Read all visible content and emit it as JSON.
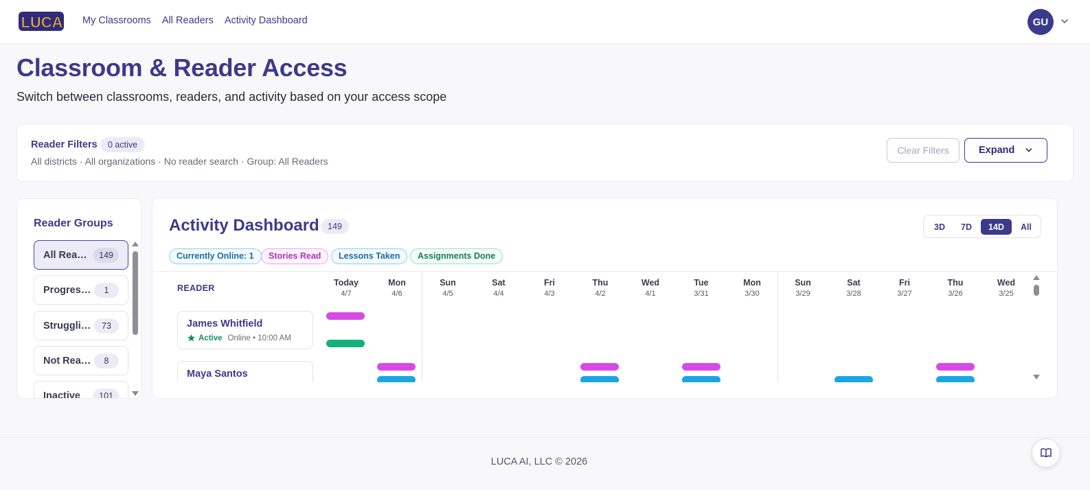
{
  "header": {
    "logo_text": "LUCA",
    "nav": [
      "My Classrooms",
      "All Readers",
      "Activity Dashboard"
    ],
    "user_initials": "GU"
  },
  "page": {
    "title": "Classroom & Reader Access",
    "subtitle": "Switch between classrooms, readers, and activity based on your access scope"
  },
  "filters": {
    "title": "Reader Filters",
    "badge": "0 active",
    "summary": "All districts · All organizations · No reader search · Group: All Readers",
    "clear_label": "Clear Filters",
    "expand_label": "Expand"
  },
  "groups": {
    "title": "Reader Groups",
    "items": [
      {
        "label": "All Readers",
        "count": "149"
      },
      {
        "label": "Progressing",
        "count": "1"
      },
      {
        "label": "Struggling",
        "count": "73"
      },
      {
        "label": "Not Reading",
        "count": "8"
      },
      {
        "label": "Inactive",
        "count": "101"
      }
    ]
  },
  "activity": {
    "title": "Activity Dashboard",
    "count": "149",
    "ranges": [
      "3D",
      "7D",
      "14D",
      "All"
    ],
    "selected_range": "14D",
    "legend": {
      "online": "Currently Online: 1",
      "stories": "Stories Read",
      "lessons": "Lessons Taken",
      "assignments": "Assignments Done"
    },
    "reader_header": "READER",
    "days": [
      {
        "name": "Today",
        "date": "4/7"
      },
      {
        "name": "Mon",
        "date": "4/6"
      },
      {
        "name": "Sun",
        "date": "4/5"
      },
      {
        "name": "Sat",
        "date": "4/4"
      },
      {
        "name": "Fri",
        "date": "4/3"
      },
      {
        "name": "Thu",
        "date": "4/2"
      },
      {
        "name": "Wed",
        "date": "4/1"
      },
      {
        "name": "Tue",
        "date": "3/31"
      },
      {
        "name": "Mon",
        "date": "3/30"
      },
      {
        "name": "Sun",
        "date": "3/29"
      },
      {
        "name": "Sat",
        "date": "3/28"
      },
      {
        "name": "Fri",
        "date": "3/27"
      },
      {
        "name": "Thu",
        "date": "3/26"
      },
      {
        "name": "Wed",
        "date": "3/25"
      }
    ],
    "readers": [
      {
        "name": "James Whitfield",
        "status": "Active",
        "status_detail": "Online • 10:00 AM"
      },
      {
        "name": "Maya Santos",
        "status": "",
        "status_detail": ""
      }
    ],
    "colors": {
      "stories": "#d84ae6",
      "lessons": "#18a6e6",
      "assignments": "#14b07a"
    }
  },
  "footer": {
    "text": "LUCA AI, LLC © 2026"
  }
}
